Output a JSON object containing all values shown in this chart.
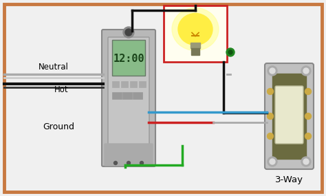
{
  "bg": "#f0f0f0",
  "border_color": "#c87941",
  "wire_gray": "#aaaaaa",
  "wire_black": "#111111",
  "wire_red": "#cc2222",
  "wire_blue": "#3399cc",
  "wire_green": "#22aa22",
  "wire_white": "#cccccc",
  "lamp_box_red": "#cc2222",
  "lamp_bg": "#fffef0",
  "timer_plate": "#b0b0b0",
  "timer_body": "#c8c8c8",
  "timer_lcd": "#88bb88",
  "timer_lcd_text": "#1a441a",
  "switch_plate": "#c0c0c0",
  "switch_body": "#888866",
  "switch_toggle": "#e8e8cc",
  "screw_color": "#aaaaaa",
  "text_color": "#000000",
  "neutral_label": "Neutral",
  "hot_label": "Hot",
  "ground_label": "Ground",
  "way3_label": "3-Way",
  "lw_wire": 2.0,
  "lw_border": 3.5
}
